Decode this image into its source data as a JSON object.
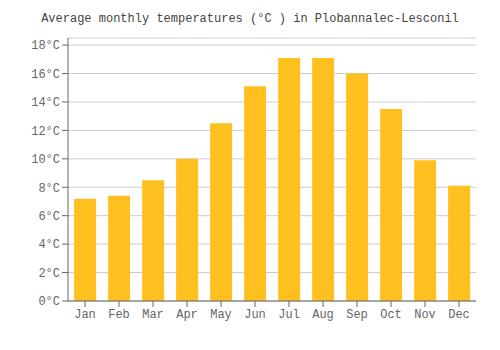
{
  "chart_data": {
    "type": "bar",
    "title": "Average monthly temperatures (°C ) in Plobannalec-Lesconil",
    "categories": [
      "Jan",
      "Feb",
      "Mar",
      "Apr",
      "May",
      "Jun",
      "Jul",
      "Aug",
      "Sep",
      "Oct",
      "Nov",
      "Dec"
    ],
    "values": [
      7.2,
      7.4,
      8.5,
      10.0,
      12.5,
      15.1,
      17.1,
      17.1,
      16.0,
      13.5,
      9.9,
      8.1
    ],
    "color": "#FFC020",
    "ylim": [
      0,
      18.5
    ],
    "yticks": [
      {
        "value": 0,
        "label": "0°C"
      },
      {
        "value": 2,
        "label": "2°C"
      },
      {
        "value": 4,
        "label": "4°C"
      },
      {
        "value": 6,
        "label": "6°C"
      },
      {
        "value": 8,
        "label": "8°C"
      },
      {
        "value": 10,
        "label": "10°C"
      },
      {
        "value": 12,
        "label": "12°C"
      },
      {
        "value": 14,
        "label": "14°C"
      },
      {
        "value": 16,
        "label": "16°C"
      },
      {
        "value": 18,
        "label": "18°C"
      }
    ],
    "grid": true
  }
}
